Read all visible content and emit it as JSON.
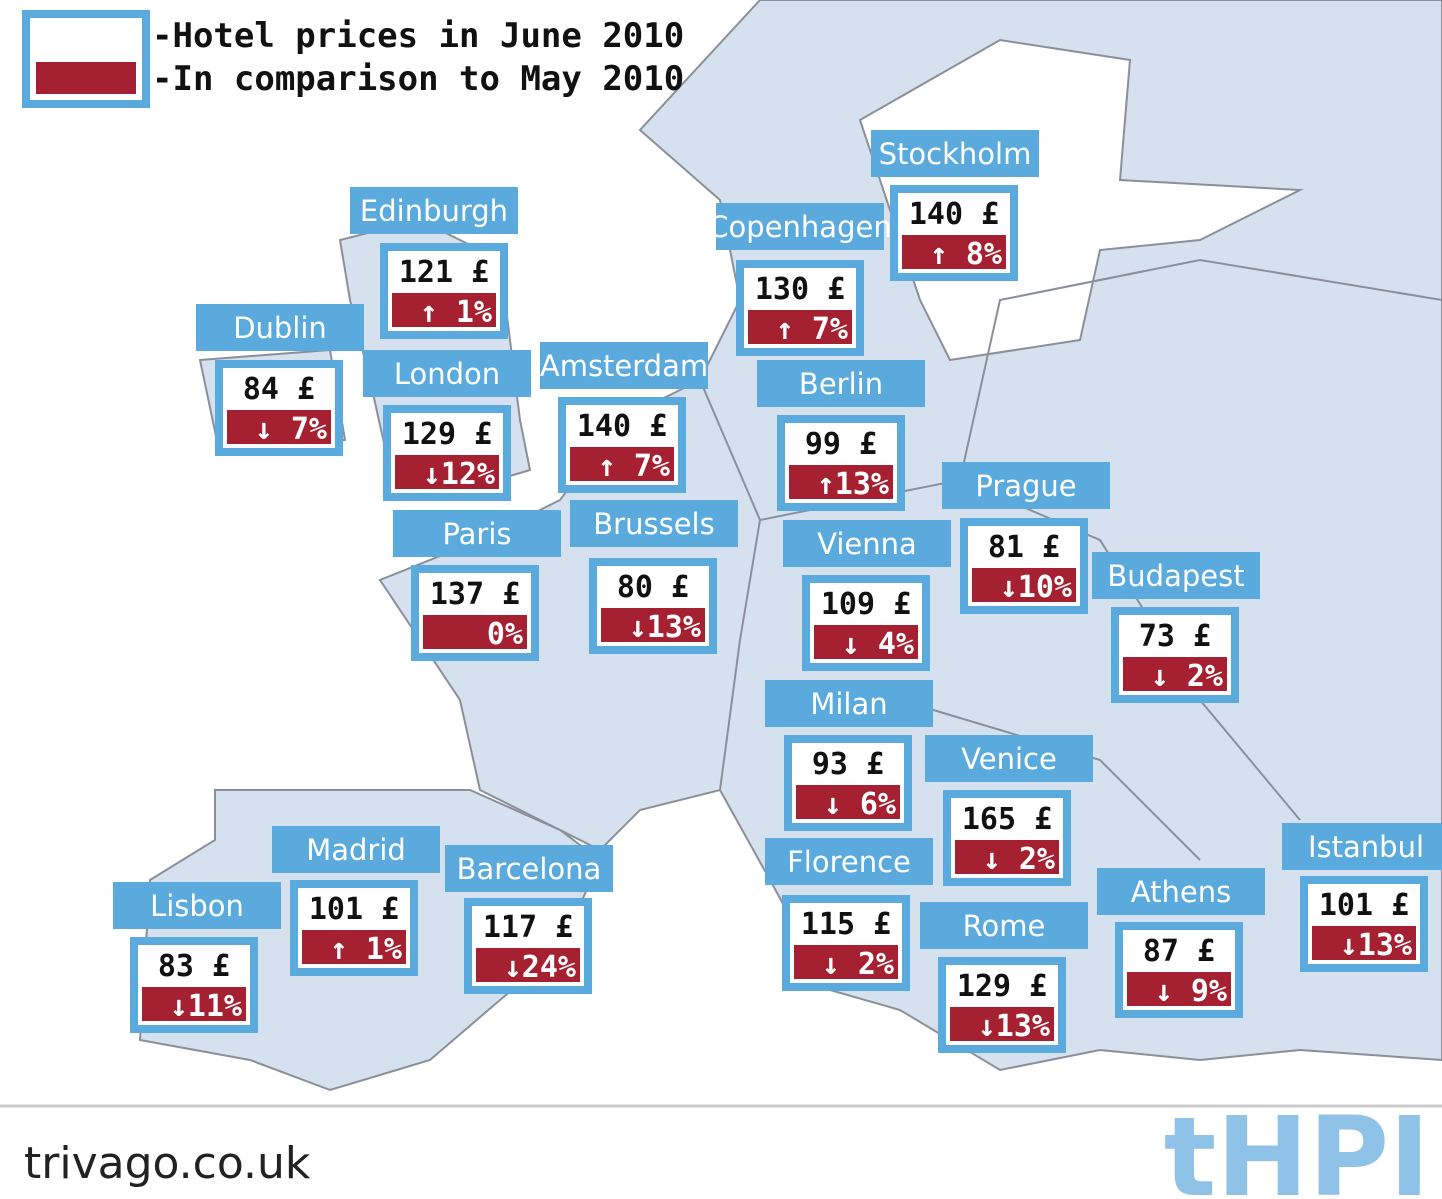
{
  "legend": {
    "price": "-Hotel prices in June 2010",
    "change": "-In comparison to May 2010"
  },
  "cities": [
    {
      "name": "Edinburgh",
      "price": "121 £",
      "change": "↑ 1%"
    },
    {
      "name": "Dublin",
      "price": "84 £",
      "change": "↓ 7%"
    },
    {
      "name": "London",
      "price": "129 £",
      "change": "↓12%"
    },
    {
      "name": "Amsterdam",
      "price": "140 £",
      "change": "↑ 7%"
    },
    {
      "name": "Stockholm",
      "price": "140 £",
      "change": "↑ 8%"
    },
    {
      "name": "Copenhagen",
      "price": "130 £",
      "change": "↑ 7%"
    },
    {
      "name": "Berlin",
      "price": "99 £",
      "change": "↑13%"
    },
    {
      "name": "Paris",
      "price": "137 £",
      "change": "0%"
    },
    {
      "name": "Brussels",
      "price": "80 £",
      "change": "↓13%"
    },
    {
      "name": "Vienna",
      "price": "109 £",
      "change": "↓ 4%"
    },
    {
      "name": "Prague",
      "price": "81 £",
      "change": "↓10%"
    },
    {
      "name": "Budapest",
      "price": "73 £",
      "change": "↓ 2%"
    },
    {
      "name": "Milan",
      "price": "93 £",
      "change": "↓ 6%"
    },
    {
      "name": "Venice",
      "price": "165 £",
      "change": "↓ 2%"
    },
    {
      "name": "Madrid",
      "price": "101 £",
      "change": "↑ 1%"
    },
    {
      "name": "Barcelona",
      "price": "117 £",
      "change": "↓24%"
    },
    {
      "name": "Lisbon",
      "price": "83 £",
      "change": "↓11%"
    },
    {
      "name": "Florence",
      "price": "115 £",
      "change": "↓ 2%"
    },
    {
      "name": "Rome",
      "price": "129 £",
      "change": "↓13%"
    },
    {
      "name": "Athens",
      "price": "87 £",
      "change": "↓ 9%"
    },
    {
      "name": "Istanbul",
      "price": "101 £",
      "change": "↓13%"
    }
  ],
  "footer": {
    "source": "trivago.co.uk",
    "logo": "tHPI"
  }
}
